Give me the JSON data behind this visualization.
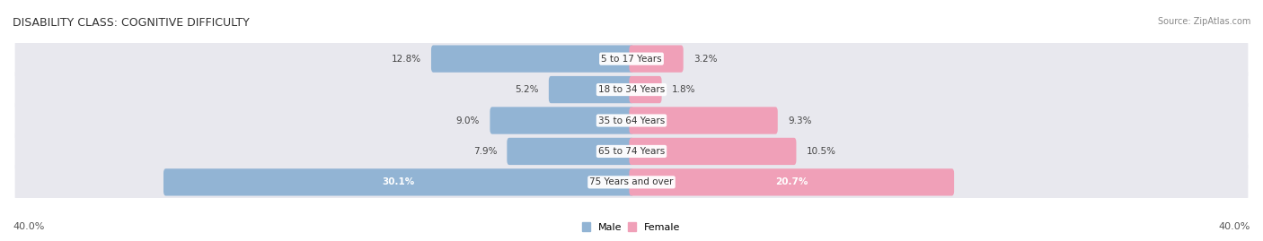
{
  "title": "DISABILITY CLASS: COGNITIVE DIFFICULTY",
  "source": "Source: ZipAtlas.com",
  "categories": [
    "5 to 17 Years",
    "18 to 34 Years",
    "35 to 64 Years",
    "65 to 74 Years",
    "75 Years and over"
  ],
  "male_values": [
    12.8,
    5.2,
    9.0,
    7.9,
    30.1
  ],
  "female_values": [
    3.2,
    1.8,
    9.3,
    10.5,
    20.7
  ],
  "male_color": "#92b4d4",
  "female_color": "#f0a0b8",
  "male_label": "Male",
  "female_label": "Female",
  "axis_max": 40.0,
  "axis_label_left": "40.0%",
  "axis_label_right": "40.0%",
  "bar_height": 0.58,
  "background_color": "#ffffff",
  "row_bg_color": "#e8e8ee",
  "title_fontsize": 9,
  "label_fontsize": 7.5,
  "category_fontsize": 7.5
}
